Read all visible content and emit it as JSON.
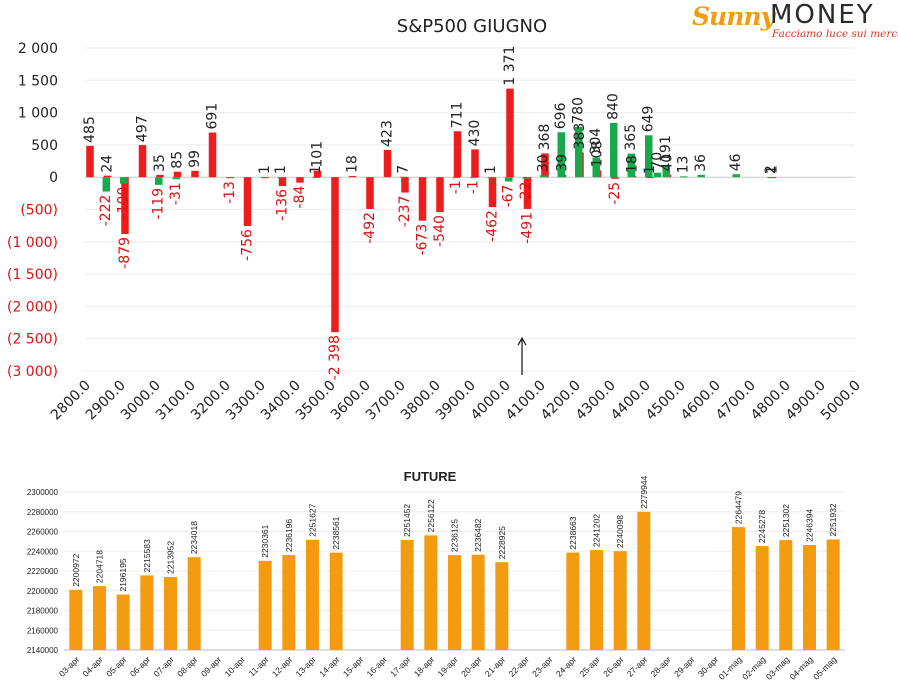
{
  "logo": {
    "word1": "Sunny",
    "word2": "MONEY",
    "tagline": "Facciamo luce sui mercati"
  },
  "colors": {
    "positive_bar": "#ee1c1c",
    "negative_bar": "#1aa84c",
    "future_bar": "#f39c12",
    "label_pos": "#222222",
    "label_neg": "#dd1111",
    "axis_neg": "#dd1111"
  },
  "chart_data": [
    {
      "type": "bar",
      "title": "S&P500 GIUGNO",
      "ylim": [
        -3000,
        2000
      ],
      "xlim": [
        2800,
        5000
      ],
      "x_ticks": [
        "2800.0",
        "2900.0",
        "3000.0",
        "3100.0",
        "3200.0",
        "3300.0",
        "3400.0",
        "3500.0",
        "3600.0",
        "3700.0",
        "3800.0",
        "3900.0",
        "4000.0",
        "4100.0",
        "4200.0",
        "4300.0",
        "4400.0",
        "4500.0",
        "4600.0",
        "4700.0",
        "4800.0",
        "4900.0",
        "5000.0"
      ],
      "y_ticks": [
        "2 000",
        "1 500",
        "1 000",
        "500",
        "0",
        "(500)",
        "(1 000)",
        "(1 500)",
        "(2 000)",
        "(2 500)",
        "(3 000)"
      ],
      "series": [
        {
          "points": [
            [
              2825,
              485
            ],
            [
              2875,
              24
            ],
            [
              2925,
              -879
            ],
            [
              2975,
              497
            ],
            [
              3025,
              35
            ],
            [
              3075,
              85
            ],
            [
              3125,
              99
            ],
            [
              3175,
              691
            ],
            [
              3225,
              -13
            ],
            [
              3275,
              -756
            ],
            [
              3325,
              1
            ],
            [
              3375,
              -136
            ],
            [
              3425,
              -84
            ],
            [
              3475,
              101
            ],
            [
              3525,
              -2398
            ],
            [
              3575,
              18
            ],
            [
              3625,
              -492
            ],
            [
              3675,
              423
            ],
            [
              3725,
              -237
            ],
            [
              3775,
              -673
            ],
            [
              3825,
              -540
            ],
            [
              3875,
              711
            ],
            [
              3925,
              430
            ],
            [
              3975,
              -462
            ],
            [
              4025,
              1371
            ],
            [
              4075,
              -491
            ],
            [
              4125,
              368
            ],
            [
              4175,
              39
            ],
            [
              4225,
              383
            ],
            [
              4275,
              108
            ],
            [
              4325,
              -25
            ],
            [
              4375,
              18
            ],
            [
              4425,
              1
            ],
            [
              4475,
              40
            ],
            [
              4525,
              0
            ],
            [
              4575,
              0
            ],
            [
              4625,
              0
            ],
            [
              4675,
              0
            ],
            [
              4725,
              0
            ],
            [
              4775,
              1
            ]
          ],
          "labels": [
            {
              "x": 2825,
              "text": "485"
            },
            {
              "x": 2875,
              "text": "24"
            },
            {
              "x": 2925,
              "text": "-879"
            },
            {
              "x": 2975,
              "text": "497"
            },
            {
              "x": 3025,
              "text": "35"
            },
            {
              "x": 3075,
              "text": "85"
            },
            {
              "x": 3125,
              "text": "99"
            },
            {
              "x": 3175,
              "text": "691"
            },
            {
              "x": 3225,
              "text": "-13"
            },
            {
              "x": 3275,
              "text": "-756"
            },
            {
              "x": 3325,
              "text": "1"
            },
            {
              "x": 3375,
              "text": "-136"
            },
            {
              "x": 3425,
              "text": "-84"
            },
            {
              "x": 3475,
              "text": "101"
            },
            {
              "x": 3525,
              "text": "-2 398"
            },
            {
              "x": 3575,
              "text": "18"
            },
            {
              "x": 3625,
              "text": "-492"
            },
            {
              "x": 3675,
              "text": "423"
            },
            {
              "x": 3725,
              "text": "-237"
            },
            {
              "x": 3775,
              "text": "-673"
            },
            {
              "x": 3825,
              "text": "-540"
            },
            {
              "x": 3875,
              "text": "711"
            },
            {
              "x": 3925,
              "text": "430"
            },
            {
              "x": 3975,
              "text": "-462"
            },
            {
              "x": 4025,
              "text": "1 371"
            },
            {
              "x": 4075,
              "text": "-491"
            },
            {
              "x": 4125,
              "text": "368"
            },
            {
              "x": 4175,
              "text": "39"
            },
            {
              "x": 4225,
              "text": "383"
            },
            {
              "x": 4275,
              "text": "108"
            },
            {
              "x": 4325,
              "text": "-25"
            },
            {
              "x": 4375,
              "text": "18"
            },
            {
              "x": 4425,
              "text": "1"
            },
            {
              "x": 4475,
              "text": "40"
            },
            {
              "x": 4775,
              "text": "1"
            }
          ]
        },
        {
          "points": [
            [
              2850,
              -222
            ],
            [
              2900,
              -100
            ],
            [
              3000,
              -119
            ],
            [
              3050,
              -31
            ],
            [
              3350,
              1
            ],
            [
              3450,
              1
            ],
            [
              3700,
              7
            ],
            [
              3850,
              -1
            ],
            [
              3900,
              -1
            ],
            [
              3950,
              1
            ],
            [
              4000,
              -67
            ],
            [
              4050,
              -22
            ],
            [
              4100,
              30
            ],
            [
              4150,
              696
            ],
            [
              4200,
              780
            ],
            [
              4250,
              304
            ],
            [
              4300,
              840
            ],
            [
              4350,
              365
            ],
            [
              4400,
              649
            ],
            [
              4425,
              70
            ],
            [
              4450,
              191
            ],
            [
              4500,
              13
            ],
            [
              4550,
              36
            ],
            [
              4650,
              46
            ],
            [
              4750,
              2
            ]
          ],
          "labels": [
            {
              "x": 2850,
              "text": "-222"
            },
            {
              "x": 2900,
              "text": "-100"
            },
            {
              "x": 3000,
              "text": "-119"
            },
            {
              "x": 3050,
              "text": "-31"
            },
            {
              "x": 3350,
              "text": "1"
            },
            {
              "x": 3450,
              "text": "1"
            },
            {
              "x": 3700,
              "text": "7"
            },
            {
              "x": 3850,
              "text": "-1"
            },
            {
              "x": 3900,
              "text": "-1"
            },
            {
              "x": 3950,
              "text": "1"
            },
            {
              "x": 4000,
              "text": "-67"
            },
            {
              "x": 4050,
              "text": "-22"
            },
            {
              "x": 4100,
              "text": "30"
            },
            {
              "x": 4150,
              "text": "696"
            },
            {
              "x": 4200,
              "text": "780"
            },
            {
              "x": 4250,
              "text": "304"
            },
            {
              "x": 4300,
              "text": "840"
            },
            {
              "x": 4350,
              "text": "365"
            },
            {
              "x": 4400,
              "text": "649"
            },
            {
              "x": 4425,
              "text": "70"
            },
            {
              "x": 4450,
              "text": "191"
            },
            {
              "x": 4500,
              "text": "13"
            },
            {
              "x": 4550,
              "text": "36"
            },
            {
              "x": 4650,
              "text": "46"
            },
            {
              "x": 4750,
              "text": "2"
            }
          ]
        }
      ],
      "annotations": [
        {
          "type": "arrow",
          "x": 4100,
          "y_from": -3000,
          "y_to": -2400
        }
      ]
    },
    {
      "type": "bar",
      "title": "FUTURE",
      "ylim": [
        2140000,
        2300000
      ],
      "y_ticks": [
        "2300000",
        "2280000",
        "2260000",
        "2240000",
        "2220000",
        "2200000",
        "2180000",
        "2160000",
        "2140000"
      ],
      "categories": [
        "03-apr",
        "04-apr",
        "05-apr",
        "06-apr",
        "07-apr",
        "08-apr",
        "09-apr",
        "10-apr",
        "11-apr",
        "12-apr",
        "13-apr",
        "14-apr",
        "15-apr",
        "16-apr",
        "17-apr",
        "18-apr",
        "19-apr",
        "20-apr",
        "21-apr",
        "22-apr",
        "23-apr",
        "24-apr",
        "25-apr",
        "26-apr",
        "27-apr",
        "28-apr",
        "29-apr",
        "30-apr",
        "01-mag",
        "02-mag",
        "03-mag",
        "04-mag",
        "05-mag"
      ],
      "values": [
        2200972,
        2204718,
        2196195,
        2215583,
        2213952,
        2234018,
        null,
        null,
        2230361,
        2236196,
        2251627,
        2238561,
        null,
        null,
        2251452,
        2256122,
        2236125,
        2236482,
        2228925,
        null,
        null,
        2238663,
        2241202,
        2240098,
        2279944,
        null,
        null,
        null,
        2264479,
        2245278,
        2251302,
        2246394,
        2251932
      ]
    }
  ]
}
